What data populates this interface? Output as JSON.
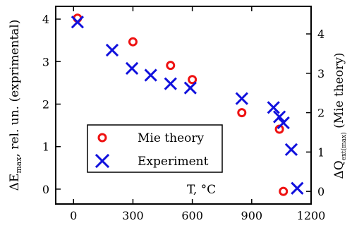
{
  "colors": {
    "mie": "#ee1111",
    "experiment": "#1111dd",
    "axis": "#000000"
  },
  "chart_data": {
    "type": "scatter",
    "x_axis": {
      "range": [
        -90,
        1200
      ],
      "ticks": [
        0,
        300,
        600,
        900,
        1200
      ],
      "tick_labels": [
        "0",
        "300",
        "600",
        "900",
        "1200"
      ]
    },
    "y_axes": {
      "left": {
        "label_main": "ΔE",
        "label_sub": "max",
        "label_rest": ", rel. un. (exprimental)",
        "range": [
          -0.35,
          4.3
        ],
        "ticks": [
          0,
          1,
          2,
          3,
          4
        ],
        "tick_labels": [
          "0",
          "1",
          "2",
          "3",
          "4"
        ]
      },
      "right": {
        "label_main": "ΔQ",
        "label_sub": "ext(max)",
        "label_rest": " (Mie theory)",
        "range": [
          -0.32,
          4.7
        ],
        "ticks": [
          0,
          1,
          2,
          3,
          4
        ],
        "tick_labels": [
          "0",
          "1",
          "2",
          "3",
          "4"
        ]
      }
    },
    "annotation": "T, °C",
    "legend": {
      "position": "bottom-left"
    },
    "series": [
      {
        "name": "Mie theory",
        "marker": "circle",
        "axis": "right",
        "x": [
          20,
          300,
          490,
          600,
          850,
          1040,
          1060
        ],
        "y": [
          4.4,
          3.8,
          3.2,
          2.84,
          2.0,
          1.58,
          0.0
        ]
      },
      {
        "name": "Experiment",
        "marker": "x",
        "axis": "left",
        "x": [
          20,
          195,
          295,
          390,
          490,
          590,
          850,
          1010,
          1040,
          1060,
          1100,
          1130
        ],
        "y": [
          3.93,
          3.27,
          2.84,
          2.68,
          2.48,
          2.38,
          2.13,
          1.92,
          1.7,
          1.56,
          0.93,
          0.02
        ]
      }
    ]
  }
}
